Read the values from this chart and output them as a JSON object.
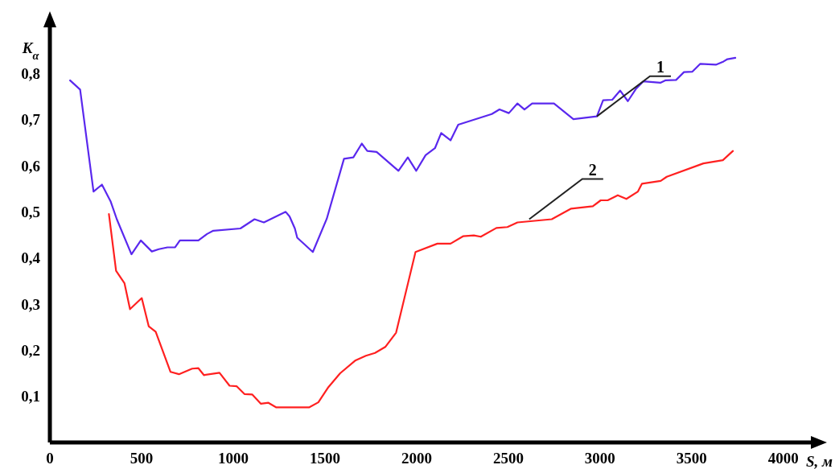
{
  "chart_data": {
    "type": "line",
    "xlabel": "S, м",
    "ylabel": "K$_{α}$",
    "xlim": [
      0,
      4150
    ],
    "ylim": [
      0,
      0.9
    ],
    "xticks": [
      0,
      500,
      1000,
      1500,
      2000,
      2500,
      3000,
      3500,
      4000
    ],
    "yticks": [
      {
        "value": 0.1,
        "label": "0,1"
      },
      {
        "value": 0.2,
        "label": "0,2"
      },
      {
        "value": 0.3,
        "label": "0,3"
      },
      {
        "value": 0.4,
        "label": "0,4"
      },
      {
        "value": 0.5,
        "label": "0,5"
      },
      {
        "value": 0.6,
        "label": "0,6"
      },
      {
        "value": 0.7,
        "label": "0,7"
      },
      {
        "value": 0.8,
        "label": "0,8"
      }
    ],
    "grid": false,
    "marker": "none",
    "line_style": "solid",
    "series": [
      {
        "color": "#5a28ee",
        "x": [
          110,
          165,
          238,
          284,
          331,
          365,
          445,
          496,
          556,
          594,
          641,
          683,
          709,
          810,
          857,
          891,
          1039,
          1116,
          1167,
          1286,
          1307,
          1336,
          1349,
          1434,
          1510,
          1604,
          1655,
          1701,
          1731,
          1782,
          1901,
          1952,
          1998,
          2049,
          2100,
          2134,
          2185,
          2227,
          2410,
          2452,
          2503,
          2550,
          2588,
          2630,
          2749,
          2855,
          2983,
          3017,
          3067,
          3110,
          3152,
          3195,
          3237,
          3331,
          3356,
          3415,
          3458,
          3504,
          3547,
          3632,
          3674,
          3695,
          3738
        ],
        "values": [
          0.785,
          0.765,
          0.544,
          0.559,
          0.523,
          0.484,
          0.408,
          0.438,
          0.414,
          0.419,
          0.423,
          0.423,
          0.438,
          0.438,
          0.452,
          0.459,
          0.464,
          0.484,
          0.477,
          0.5,
          0.49,
          0.464,
          0.444,
          0.413,
          0.485,
          0.615,
          0.618,
          0.648,
          0.632,
          0.63,
          0.589,
          0.618,
          0.589,
          0.623,
          0.638,
          0.671,
          0.655,
          0.689,
          0.712,
          0.722,
          0.714,
          0.735,
          0.722,
          0.735,
          0.735,
          0.701,
          0.707,
          0.742,
          0.743,
          0.763,
          0.74,
          0.766,
          0.783,
          0.78,
          0.785,
          0.786,
          0.803,
          0.804,
          0.821,
          0.819,
          0.826,
          0.831,
          0.834
        ]
      },
      {
        "color": "#ff2020",
        "x": [
          322,
          361,
          407,
          437,
          501,
          539,
          577,
          658,
          704,
          776,
          810,
          840,
          925,
          980,
          1018,
          1061,
          1103,
          1150,
          1192,
          1235,
          1413,
          1464,
          1519,
          1583,
          1667,
          1723,
          1773,
          1829,
          1888,
          1994,
          2113,
          2185,
          2253,
          2312,
          2350,
          2435,
          2495,
          2550,
          2737,
          2843,
          2961,
          3004,
          3042,
          3097,
          3144,
          3207,
          3229,
          3331,
          3364,
          3543,
          3564,
          3670,
          3725
        ],
        "values": [
          0.495,
          0.372,
          0.345,
          0.289,
          0.313,
          0.252,
          0.24,
          0.153,
          0.148,
          0.16,
          0.161,
          0.146,
          0.151,
          0.123,
          0.122,
          0.105,
          0.104,
          0.084,
          0.086,
          0.076,
          0.076,
          0.087,
          0.12,
          0.15,
          0.178,
          0.188,
          0.194,
          0.207,
          0.238,
          0.413,
          0.431,
          0.431,
          0.447,
          0.449,
          0.446,
          0.465,
          0.467,
          0.477,
          0.484,
          0.507,
          0.512,
          0.525,
          0.525,
          0.536,
          0.528,
          0.544,
          0.561,
          0.567,
          0.576,
          0.602,
          0.605,
          0.612,
          0.632
        ]
      }
    ],
    "annotations": [
      {
        "text": "1",
        "x": 2983,
        "y": 0.707
      },
      {
        "text": "2",
        "x": 2614,
        "y": 0.484
      }
    ]
  }
}
